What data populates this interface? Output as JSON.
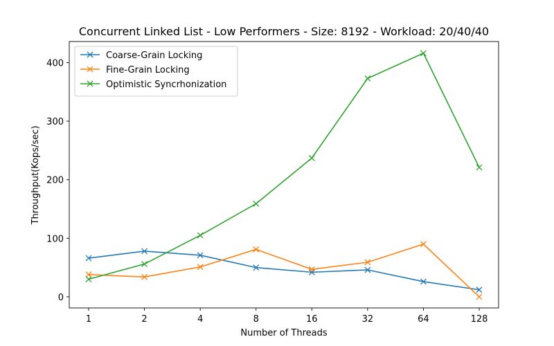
{
  "chart_data": {
    "type": "line",
    "title": "Concurrent Linked List - Low Performers - Size: 8192 - Workload: 20/40/40",
    "xlabel": "Number of Threads",
    "ylabel": "Throughput(Kops/sec)",
    "categories": [
      "1",
      "2",
      "4",
      "8",
      "16",
      "32",
      "64",
      "128"
    ],
    "ylim": [
      -19,
      436
    ],
    "yticks": [
      0,
      100,
      200,
      300,
      400
    ],
    "grid": false,
    "legend_position": "upper-left",
    "marker": "x",
    "series": [
      {
        "name": "Coarse-Grain Locking",
        "color": "#1f77b4",
        "values": [
          66,
          78,
          71,
          50,
          42,
          46,
          26,
          12
        ]
      },
      {
        "name": "Fine-Grain Locking",
        "color": "#ff7f0e",
        "values": [
          38,
          34,
          51,
          81,
          47,
          59,
          90,
          0
        ]
      },
      {
        "name": "Optimistic Syncrhonization",
        "color": "#2ca02c",
        "values": [
          30,
          56,
          105,
          159,
          237,
          373,
          416,
          221
        ]
      }
    ]
  }
}
